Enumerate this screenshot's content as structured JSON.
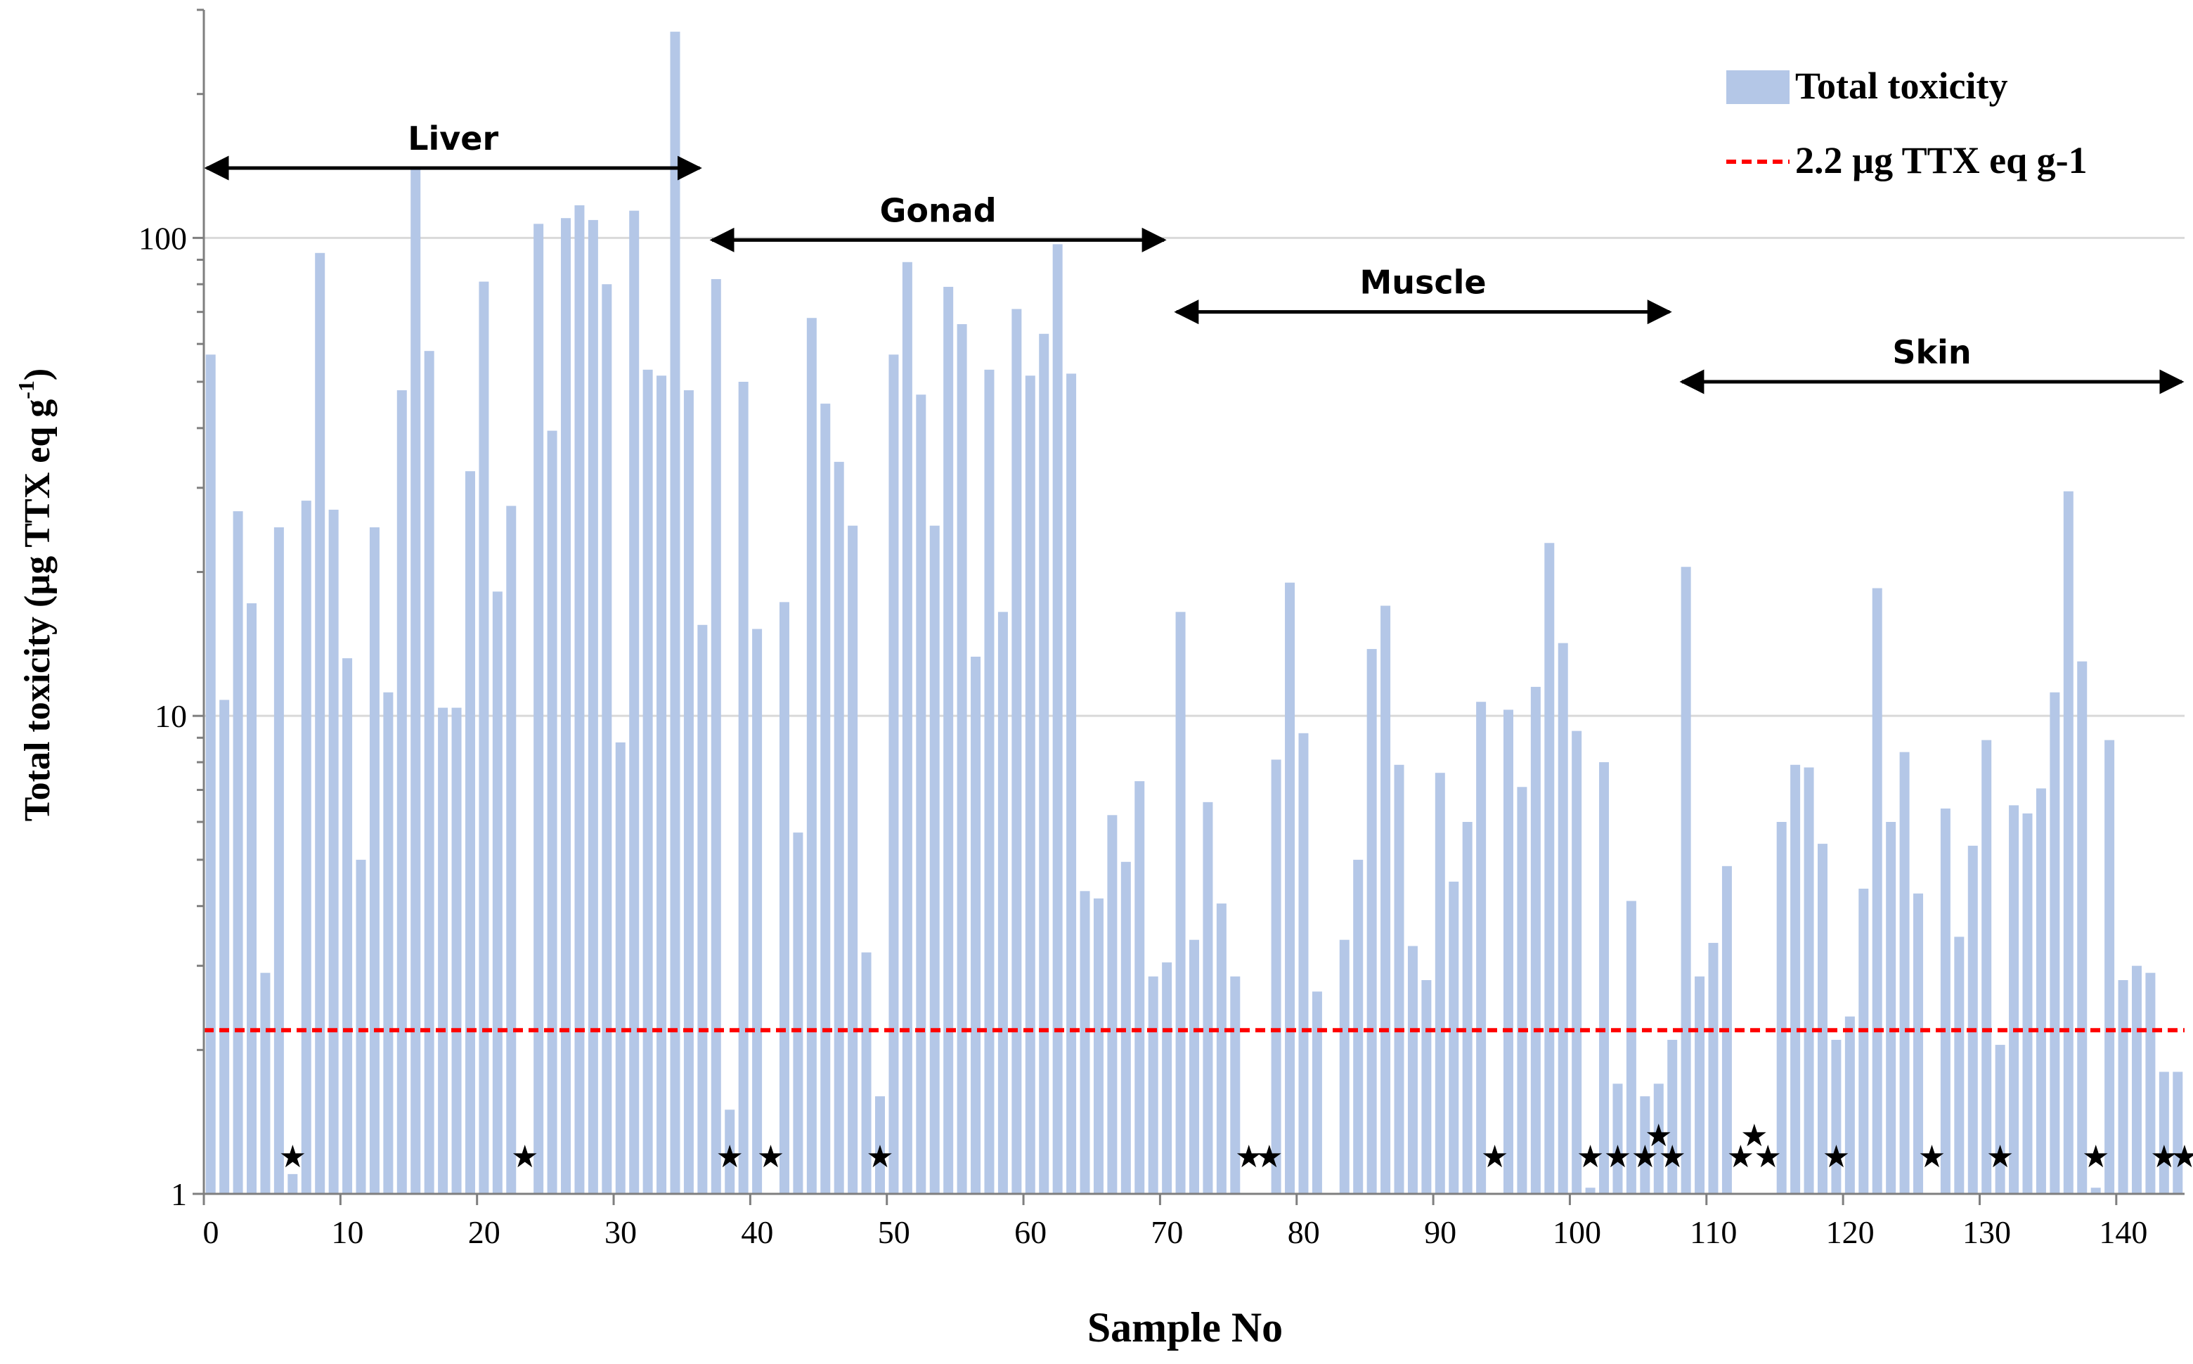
{
  "chart_data": {
    "type": "bar",
    "xlabel": "Sample No",
    "ylabel": "Total toxicity (µg TTX eq g",
    "ylabel_sup": "-1",
    "ylabel_close": ")",
    "y_scale": "log",
    "ylim": [
      1,
      300
    ],
    "xlim": [
      0,
      145
    ],
    "x_ticks": [
      0,
      10,
      20,
      30,
      40,
      50,
      60,
      70,
      80,
      90,
      100,
      110,
      120,
      130,
      140
    ],
    "y_ticks": [
      {
        "value": 1,
        "label": "1"
      },
      {
        "value": 10,
        "label": "10"
      },
      {
        "value": 100,
        "label": "100"
      }
    ],
    "grid": true,
    "legend_position": "top-right",
    "bar_color": "#b4c7e7",
    "threshold_color": "#ff0000",
    "series": [
      {
        "name": "Total toxicity",
        "x": [
          0,
          1,
          2,
          3,
          4,
          5,
          6,
          7,
          8,
          9,
          10,
          11,
          12,
          13,
          14,
          15,
          16,
          17,
          18,
          19,
          20,
          21,
          22,
          23,
          24,
          25,
          26,
          27,
          28,
          29,
          30,
          31,
          32,
          33,
          34,
          35,
          36,
          37,
          38,
          39,
          40,
          41,
          42,
          43,
          44,
          45,
          46,
          47,
          48,
          49,
          50,
          51,
          52,
          53,
          54,
          55,
          56,
          57,
          58,
          59,
          60,
          61,
          62,
          63,
          64,
          65,
          66,
          67,
          68,
          69,
          70,
          71,
          72,
          73,
          74,
          75,
          76,
          77,
          78,
          79,
          80,
          81,
          82,
          83,
          84,
          85,
          86,
          87,
          88,
          89,
          90,
          91,
          92,
          93,
          94,
          95,
          96,
          97,
          98,
          99,
          100,
          101,
          102,
          103,
          104,
          105,
          106,
          107,
          108,
          109,
          110,
          111,
          112,
          113,
          114,
          115,
          116,
          117,
          118,
          119,
          120,
          121,
          122,
          123,
          124,
          125,
          126,
          127,
          128,
          129,
          130,
          131,
          132,
          133,
          134,
          135,
          136,
          137,
          138,
          139,
          140,
          141,
          142,
          143,
          144
        ],
        "values": [
          57,
          10.8,
          26.8,
          17.2,
          2.9,
          24.8,
          1.1,
          28.2,
          93,
          27,
          13.2,
          5.0,
          24.8,
          11.2,
          48,
          140,
          58,
          10.4,
          10.4,
          32.5,
          81,
          18.2,
          27.5,
          1.0,
          107,
          39.5,
          110,
          117,
          109,
          80,
          8.8,
          114,
          53,
          51.5,
          270,
          48,
          15.5,
          82,
          1.5,
          50,
          15.2,
          1.0,
          17.3,
          5.7,
          68,
          45,
          34,
          25,
          3.2,
          1.6,
          57,
          89,
          47,
          25,
          79,
          66,
          13.3,
          53,
          16.5,
          71,
          51.5,
          63,
          97,
          52,
          4.3,
          4.15,
          6.2,
          4.95,
          7.3,
          2.85,
          3.05,
          16.5,
          3.4,
          6.6,
          4.05,
          2.85,
          1.0,
          1.0,
          8.1,
          19,
          9.2,
          2.65,
          1.0,
          3.4,
          5.0,
          13.8,
          17,
          7.9,
          3.3,
          2.8,
          7.6,
          4.5,
          6.0,
          10.7,
          1.0,
          10.3,
          7.1,
          11.5,
          23,
          14.2,
          9.3,
          1.03,
          8.0,
          1.7,
          4.1,
          1.6,
          1.7,
          2.1,
          20.5,
          2.85,
          3.35,
          4.85,
          1.0,
          1.0,
          1.0,
          6.0,
          7.9,
          7.8,
          5.4,
          2.1,
          2.35,
          4.35,
          18.5,
          6.0,
          8.4,
          4.25,
          1.0,
          6.4,
          3.45,
          5.35,
          8.9,
          2.05,
          6.5,
          6.25,
          7.05,
          11.2,
          29.5,
          13,
          1.03,
          8.9,
          2.8,
          3.0,
          2.9,
          1.8,
          1.8
        ]
      },
      {
        "name": "2.2 µg TTX eq g-1",
        "type": "threshold",
        "value": 2.2
      }
    ],
    "star_markers": [
      6,
      23,
      38,
      41,
      49,
      76,
      77.5,
      94,
      101,
      103,
      105,
      107,
      112,
      114,
      119,
      126,
      131,
      138,
      143,
      144.5
    ],
    "star_markers_raised": [
      106,
      113
    ],
    "regions": [
      {
        "label": "Liver",
        "from": 0,
        "to": 36.5,
        "y": 140
      },
      {
        "label": "Gonad",
        "from": 37,
        "to": 70.5,
        "y": 99
      },
      {
        "label": "Muscle",
        "from": 71,
        "to": 107.5,
        "y": 70
      },
      {
        "label": "Skin",
        "from": 108,
        "to": 145,
        "y": 50
      }
    ],
    "star_glyph": "★"
  }
}
